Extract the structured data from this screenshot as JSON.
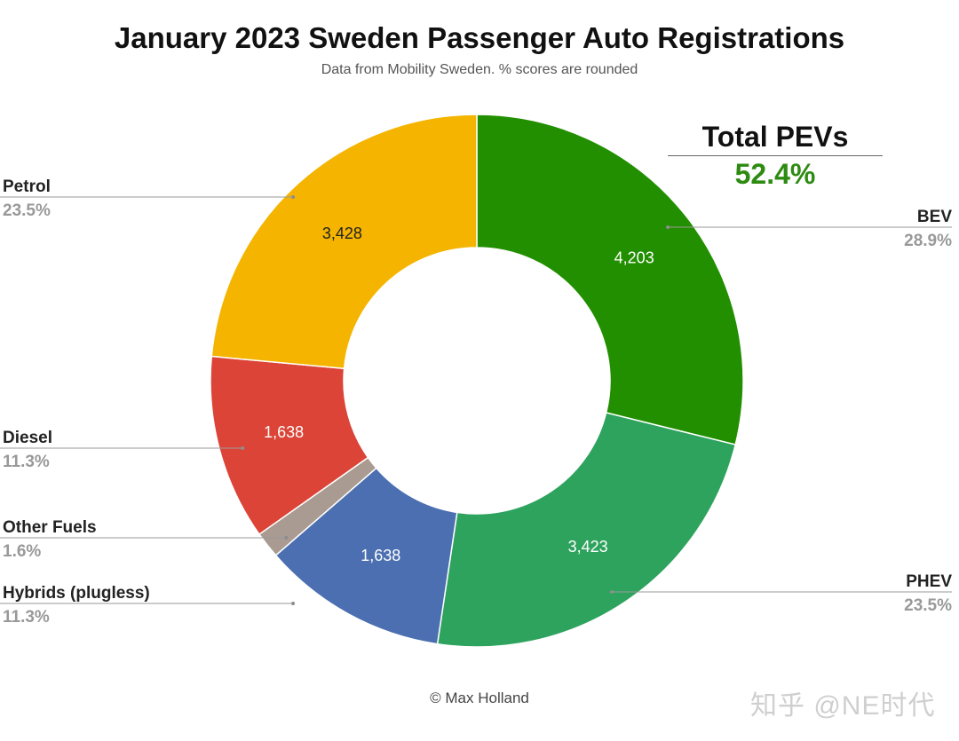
{
  "title": "January 2023 Sweden Passenger Auto Registrations",
  "subtitle": "Data from Mobility Sweden. % scores are rounded",
  "total_box": {
    "label": "Total PEVs",
    "value": "52.4%"
  },
  "credit": "© Max Holland",
  "watermark": "知乎 @NE时代",
  "colors": {
    "bev": "#218F00",
    "phev": "#2EA35E",
    "hybrids": "#4B6FB0",
    "other": "#A99B92",
    "diesel": "#DB4436",
    "petrol": "#F4B400",
    "total_value": "#2e8b12"
  },
  "chart_data": {
    "type": "pie",
    "donut": true,
    "title": "January 2023 Sweden Passenger Auto Registrations",
    "subtitle": "Data from Mobility Sweden. % scores are rounded",
    "slices": [
      {
        "label": "BEV",
        "value": 4203,
        "value_label": "4,203",
        "percent": "28.9%",
        "color": "#218F00",
        "value_text_color": "#ffffff",
        "side": "right"
      },
      {
        "label": "PHEV",
        "value": 3423,
        "value_label": "3,423",
        "percent": "23.5%",
        "color": "#2EA35E",
        "value_text_color": "#ffffff",
        "side": "right"
      },
      {
        "label": "Hybrids (plugless)",
        "value": 1638,
        "value_label": "1,638",
        "percent": "11.3%",
        "color": "#4B6FB0",
        "value_text_color": "#ffffff",
        "side": "left"
      },
      {
        "label": "Other Fuels",
        "value": 233,
        "value_label": "",
        "percent": "1.6%",
        "color": "#A99B92",
        "value_text_color": "#ffffff",
        "side": "left"
      },
      {
        "label": "Diesel",
        "value": 1638,
        "value_label": "1,638",
        "percent": "11.3%",
        "color": "#DB4436",
        "value_text_color": "#ffffff",
        "side": "left"
      },
      {
        "label": "Petrol",
        "value": 3428,
        "value_label": "3,428",
        "percent": "23.5%",
        "color": "#F4B400",
        "value_text_color": "#222222",
        "side": "left"
      }
    ],
    "legend": "none",
    "annotations": [
      {
        "text": "Total PEVs",
        "value": "52.4%"
      }
    ]
  }
}
